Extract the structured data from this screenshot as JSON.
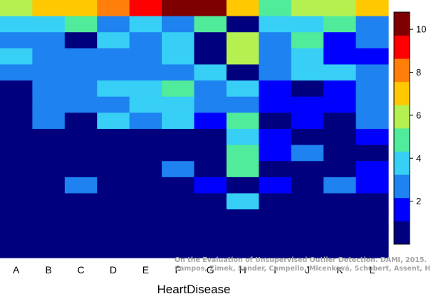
{
  "chart_data": {
    "type": "heatmap",
    "title": "",
    "xlabel": "HeartDisease",
    "ylabel": "",
    "categories": [
      "A",
      "B",
      "C",
      "D",
      "E",
      "F",
      "G",
      "H",
      "I",
      "J",
      "K",
      "L"
    ],
    "n_rows": 16,
    "grid": false,
    "colorscale": "jet",
    "zlim": [
      0,
      10.8
    ],
    "colorbar_ticks": [
      2,
      4,
      6,
      8,
      10
    ],
    "legend_position": "right",
    "values": [
      [
        6,
        7,
        7,
        8,
        9,
        10.5,
        10.5,
        7,
        5,
        6,
        6,
        7
      ],
      [
        4,
        4,
        5,
        3,
        4,
        3,
        5,
        0.5,
        4,
        4,
        5,
        3
      ],
      [
        3,
        3,
        1,
        4,
        3,
        4,
        1,
        6,
        3,
        5,
        2,
        3
      ],
      [
        4,
        3,
        3,
        3,
        3,
        4,
        1,
        6,
        3,
        4,
        2,
        2
      ],
      [
        3,
        3,
        3,
        3,
        3,
        3,
        4,
        0.5,
        3,
        4,
        4,
        3
      ],
      [
        1,
        3,
        3,
        4,
        4,
        5,
        3,
        4,
        2,
        0.5,
        2,
        3
      ],
      [
        1,
        3,
        3,
        3,
        4,
        4,
        3,
        3,
        2,
        2,
        2,
        3
      ],
      [
        1,
        3,
        1,
        4,
        3,
        4,
        2,
        5,
        1,
        2,
        1,
        3
      ],
      [
        1,
        1,
        1,
        1,
        1,
        1,
        1,
        4,
        2,
        1,
        1,
        2
      ],
      [
        1,
        0.5,
        0.5,
        1,
        1,
        1,
        0.5,
        5,
        2,
        3,
        1,
        1
      ],
      [
        1,
        0.5,
        0.5,
        1,
        1,
        3,
        0.5,
        5,
        1,
        0.5,
        0.5,
        2
      ],
      [
        0.5,
        0.5,
        3,
        0.5,
        0.5,
        0.5,
        2,
        0.5,
        2,
        0.5,
        3,
        2
      ],
      [
        0.5,
        0.5,
        0.5,
        0.5,
        0.5,
        0.5,
        0.5,
        4,
        0.5,
        0.5,
        0.5,
        0.5
      ],
      [
        0.5,
        0.5,
        0.5,
        0.5,
        0.5,
        0.5,
        0.5,
        1,
        0.5,
        0.5,
        0.5,
        0.5
      ],
      [
        0.5,
        0.5,
        0.5,
        0.5,
        0.5,
        0.5,
        0.5,
        1,
        0.5,
        0.5,
        0.5,
        0.5
      ],
      [
        0.5,
        0.5,
        0.5,
        0.5,
        0.5,
        0.5,
        0.5,
        0.5,
        0.5,
        0.5,
        0.5,
        0.5
      ]
    ]
  },
  "attribution": {
    "line1": "On the Evaluation of Unsupervised Outlier Detection. DAMI, 2015.",
    "line2": "Campos, Zimek, Sander, Campello, Micenková, Schubert, Assent, Houle"
  }
}
